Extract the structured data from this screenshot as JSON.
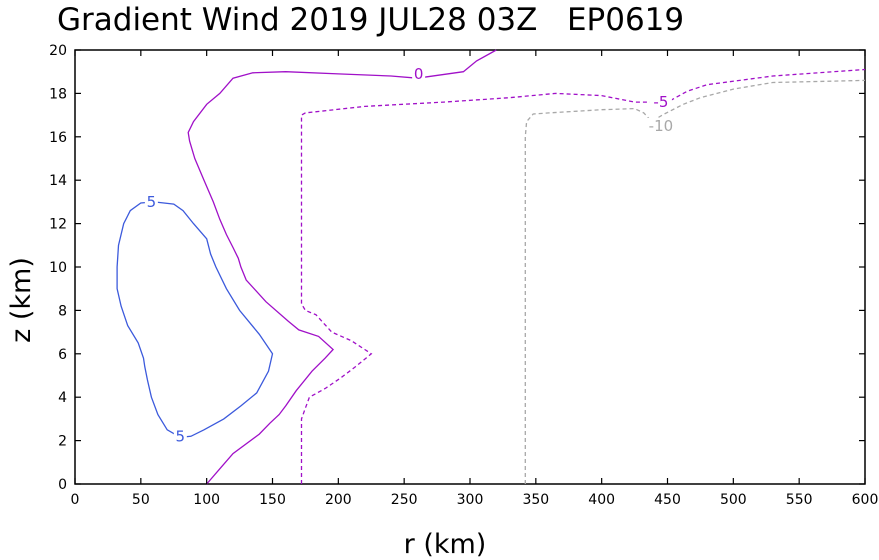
{
  "chart_data": {
    "type": "contour",
    "title": "Gradient Wind 2019 JUL28 03Z   EP0619",
    "xlabel": "r (km)",
    "ylabel": "z (km)",
    "xlim": [
      0,
      600
    ],
    "ylim": [
      0,
      20
    ],
    "xticks": [
      0,
      50,
      100,
      150,
      200,
      250,
      300,
      350,
      400,
      450,
      500,
      550,
      600
    ],
    "yticks": [
      0,
      2,
      4,
      6,
      8,
      10,
      12,
      14,
      16,
      18,
      20
    ],
    "grid": false,
    "contours": [
      {
        "level": 5,
        "color": "#3c5adc",
        "dash": "solid",
        "labels": [
          {
            "text": "5",
            "x": 58,
            "z": 13.0
          },
          {
            "text": "5",
            "x": 80,
            "z": 2.2
          }
        ],
        "points": [
          [
            60,
            13.0
          ],
          [
            75,
            12.9
          ],
          [
            82,
            12.6
          ],
          [
            90,
            12.0
          ],
          [
            100,
            11.3
          ],
          [
            103,
            10.6
          ],
          [
            107,
            10.0
          ],
          [
            115,
            9.0
          ],
          [
            125,
            8.0
          ],
          [
            140,
            6.9
          ],
          [
            150,
            6.0
          ],
          [
            147,
            5.2
          ],
          [
            138,
            4.2
          ],
          [
            126,
            3.6
          ],
          [
            113,
            3.0
          ],
          [
            98,
            2.5
          ],
          [
            88,
            2.2
          ],
          [
            80,
            2.15
          ],
          [
            70,
            2.5
          ],
          [
            63,
            3.2
          ],
          [
            58,
            4.0
          ],
          [
            55,
            4.8
          ],
          [
            53,
            5.4
          ],
          [
            52,
            5.8
          ],
          [
            48,
            6.5
          ],
          [
            40,
            7.3
          ],
          [
            35,
            8.2
          ],
          [
            32,
            9.0
          ],
          [
            32,
            10.0
          ],
          [
            33,
            11.0
          ],
          [
            37,
            12.0
          ],
          [
            42,
            12.6
          ],
          [
            50,
            12.95
          ],
          [
            60,
            13.0
          ]
        ]
      },
      {
        "level": 0,
        "color": "#a010c8",
        "dash": "solid",
        "labels": [
          {
            "text": "0",
            "x": 261,
            "z": 18.9
          }
        ],
        "points": [
          [
            100,
            0
          ],
          [
            110,
            0.7
          ],
          [
            120,
            1.4
          ],
          [
            140,
            2.3
          ],
          [
            148,
            2.8
          ],
          [
            155,
            3.2
          ],
          [
            160,
            3.6
          ],
          [
            168,
            4.3
          ],
          [
            180,
            5.2
          ],
          [
            190,
            5.8
          ],
          [
            196,
            6.2
          ],
          [
            185,
            6.8
          ],
          [
            170,
            7.1
          ],
          [
            162,
            7.5
          ],
          [
            145,
            8.4
          ],
          [
            130,
            9.4
          ],
          [
            126,
            10.0
          ],
          [
            124,
            10.4
          ],
          [
            120,
            10.9
          ],
          [
            115,
            11.5
          ],
          [
            110,
            12.2
          ],
          [
            105,
            13.0
          ],
          [
            98,
            14.0
          ],
          [
            91,
            15.0
          ],
          [
            87,
            15.8
          ],
          [
            86,
            16.2
          ],
          [
            90,
            16.7
          ],
          [
            100,
            17.5
          ],
          [
            110,
            18.0
          ],
          [
            120,
            18.7
          ],
          [
            135,
            18.95
          ],
          [
            160,
            19.0
          ],
          [
            200,
            18.9
          ],
          [
            240,
            18.8
          ],
          [
            260,
            18.7
          ],
          [
            295,
            19.0
          ],
          [
            305,
            19.5
          ],
          [
            320,
            20.0
          ]
        ]
      },
      {
        "level": -5,
        "color": "#a010c8",
        "dash": "dashed",
        "labels": [
          {
            "text": "-5",
            "x": 445,
            "z": 17.6
          }
        ],
        "points": [
          [
            172,
            0
          ],
          [
            172,
            1.0
          ],
          [
            172,
            2.0
          ],
          [
            172,
            3.0
          ],
          [
            175,
            3.5
          ],
          [
            178,
            4.0
          ],
          [
            190,
            4.4
          ],
          [
            202,
            4.9
          ],
          [
            213,
            5.4
          ],
          [
            225,
            6.0
          ],
          [
            210,
            6.6
          ],
          [
            195,
            7.0
          ],
          [
            183,
            7.8
          ],
          [
            175,
            8.0
          ],
          [
            172,
            8.3
          ],
          [
            172,
            10.0
          ],
          [
            172,
            12.0
          ],
          [
            172,
            14.0
          ],
          [
            172,
            16.0
          ],
          [
            172,
            17.0
          ],
          [
            175,
            17.1
          ],
          [
            220,
            17.4
          ],
          [
            280,
            17.6
          ],
          [
            330,
            17.8
          ],
          [
            365,
            18.0
          ],
          [
            400,
            17.9
          ],
          [
            425,
            17.6
          ],
          [
            450,
            17.6
          ],
          [
            465,
            18.1
          ],
          [
            480,
            18.4
          ],
          [
            530,
            18.8
          ],
          [
            600,
            19.1
          ]
        ]
      },
      {
        "level": -10,
        "color": "#a8a8a8",
        "dash": "dashed",
        "labels": [
          {
            "text": "-10",
            "x": 445,
            "z": 16.5
          }
        ],
        "points": [
          [
            342,
            0
          ],
          [
            342,
            2.0
          ],
          [
            342,
            4.0
          ],
          [
            342,
            6.0
          ],
          [
            342,
            8.0
          ],
          [
            342,
            10.0
          ],
          [
            342,
            12.0
          ],
          [
            342,
            14.0
          ],
          [
            342,
            16.0
          ],
          [
            343,
            16.7
          ],
          [
            348,
            17.05
          ],
          [
            360,
            17.1
          ],
          [
            400,
            17.25
          ],
          [
            425,
            17.3
          ],
          [
            432,
            17.1
          ],
          [
            438,
            16.7
          ],
          [
            446,
            17.0
          ],
          [
            462,
            17.5
          ],
          [
            475,
            17.8
          ],
          [
            500,
            18.2
          ],
          [
            530,
            18.5
          ],
          [
            600,
            18.6
          ]
        ]
      }
    ]
  }
}
